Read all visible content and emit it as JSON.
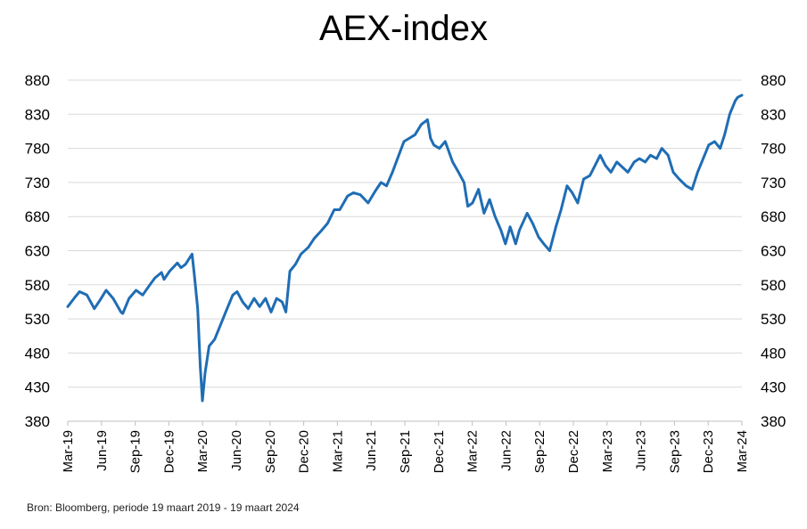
{
  "chart_data": {
    "type": "line",
    "title": "AEX-index",
    "xlabel": "",
    "ylabel": "",
    "ylim": [
      380,
      880
    ],
    "y_ticks": [
      "380",
      "430",
      "480",
      "530",
      "580",
      "630",
      "680",
      "730",
      "780",
      "830",
      "880"
    ],
    "y_axes": "left and right (mirrored)",
    "grid": "horizontal",
    "x_ticks": [
      "Mar-19",
      "Jun-19",
      "Sep-19",
      "Dec-19",
      "Mar-20",
      "Jun-20",
      "Sep-20",
      "Dec-20",
      "Mar-21",
      "Jun-21",
      "Sep-21",
      "Dec-21",
      "Mar-22",
      "Jun-22",
      "Sep-22",
      "Dec-22",
      "Mar-23",
      "Jun-23",
      "Sep-23",
      "Dec-23",
      "Mar-24"
    ],
    "line_color": "#1f6db4",
    "series": [
      {
        "x": [
          "2019-03-19",
          "2019-04-05",
          "2019-04-20",
          "2019-05-10",
          "2019-05-30",
          "2019-06-15",
          "2019-07-01",
          "2019-07-20",
          "2019-08-10",
          "2019-08-15",
          "2019-09-01",
          "2019-09-20",
          "2019-10-08",
          "2019-10-25",
          "2019-11-10",
          "2019-11-28",
          "2019-12-05",
          "2019-12-20",
          "2020-01-10",
          "2020-01-20",
          "2020-02-01",
          "2020-02-19",
          "2020-02-25",
          "2020-03-05",
          "2020-03-12",
          "2020-03-18",
          "2020-03-25",
          "2020-04-05",
          "2020-04-20",
          "2020-05-05",
          "2020-05-20",
          "2020-06-08",
          "2020-06-20",
          "2020-07-05",
          "2020-07-20",
          "2020-08-05",
          "2020-08-20",
          "2020-09-05",
          "2020-09-20",
          "2020-10-05",
          "2020-10-20",
          "2020-10-30",
          "2020-11-10",
          "2020-11-25",
          "2020-12-10",
          "2020-12-30",
          "2021-01-15",
          "2021-02-01",
          "2021-02-20",
          "2021-03-10",
          "2021-03-25",
          "2021-04-15",
          "2021-05-01",
          "2021-05-20",
          "2021-06-10",
          "2021-06-30",
          "2021-07-15",
          "2021-07-30",
          "2021-08-15",
          "2021-09-01",
          "2021-09-15",
          "2021-09-30",
          "2021-10-15",
          "2021-11-01",
          "2021-11-18",
          "2021-11-26",
          "2021-12-05",
          "2021-12-20",
          "2022-01-05",
          "2022-01-25",
          "2022-02-10",
          "2022-02-25",
          "2022-03-07",
          "2022-03-20",
          "2022-04-05",
          "2022-04-20",
          "2022-05-05",
          "2022-05-20",
          "2022-06-05",
          "2022-06-17",
          "2022-06-30",
          "2022-07-15",
          "2022-07-25",
          "2022-08-15",
          "2022-08-30",
          "2022-09-15",
          "2022-09-29",
          "2022-10-15",
          "2022-11-01",
          "2022-11-15",
          "2022-12-01",
          "2022-12-15",
          "2022-12-30",
          "2023-01-15",
          "2023-02-01",
          "2023-02-15",
          "2023-03-01",
          "2023-03-15",
          "2023-03-30",
          "2023-04-15",
          "2023-05-01",
          "2023-05-15",
          "2023-06-01",
          "2023-06-15",
          "2023-07-01",
          "2023-07-15",
          "2023-08-01",
          "2023-08-15",
          "2023-09-01",
          "2023-09-15",
          "2023-10-01",
          "2023-10-20",
          "2023-11-05",
          "2023-11-20",
          "2023-12-05",
          "2023-12-20",
          "2024-01-05",
          "2024-01-20",
          "2024-02-01",
          "2024-02-15",
          "2024-03-01",
          "2024-03-08",
          "2024-03-19"
        ],
        "values": [
          548,
          560,
          570,
          565,
          545,
          558,
          572,
          560,
          540,
          538,
          560,
          572,
          565,
          578,
          590,
          598,
          588,
          600,
          612,
          605,
          610,
          625,
          595,
          545,
          460,
          410,
          450,
          490,
          500,
          520,
          540,
          565,
          570,
          555,
          545,
          560,
          548,
          560,
          540,
          560,
          555,
          540,
          600,
          610,
          625,
          635,
          648,
          658,
          670,
          690,
          690,
          710,
          715,
          712,
          700,
          718,
          730,
          725,
          745,
          770,
          790,
          795,
          800,
          815,
          822,
          795,
          785,
          780,
          790,
          760,
          745,
          730,
          695,
          700,
          720,
          685,
          705,
          680,
          660,
          640,
          665,
          640,
          660,
          685,
          670,
          650,
          640,
          630,
          665,
          690,
          725,
          715,
          700,
          735,
          740,
          755,
          770,
          755,
          745,
          760,
          752,
          745,
          760,
          765,
          760,
          770,
          765,
          780,
          770,
          745,
          735,
          725,
          720,
          745,
          765,
          785,
          790,
          780,
          800,
          830,
          850,
          855,
          858
        ]
      }
    ]
  },
  "source_note": "Bron: Bloomberg, periode 19 maart 2019 - 19 maart 2024"
}
